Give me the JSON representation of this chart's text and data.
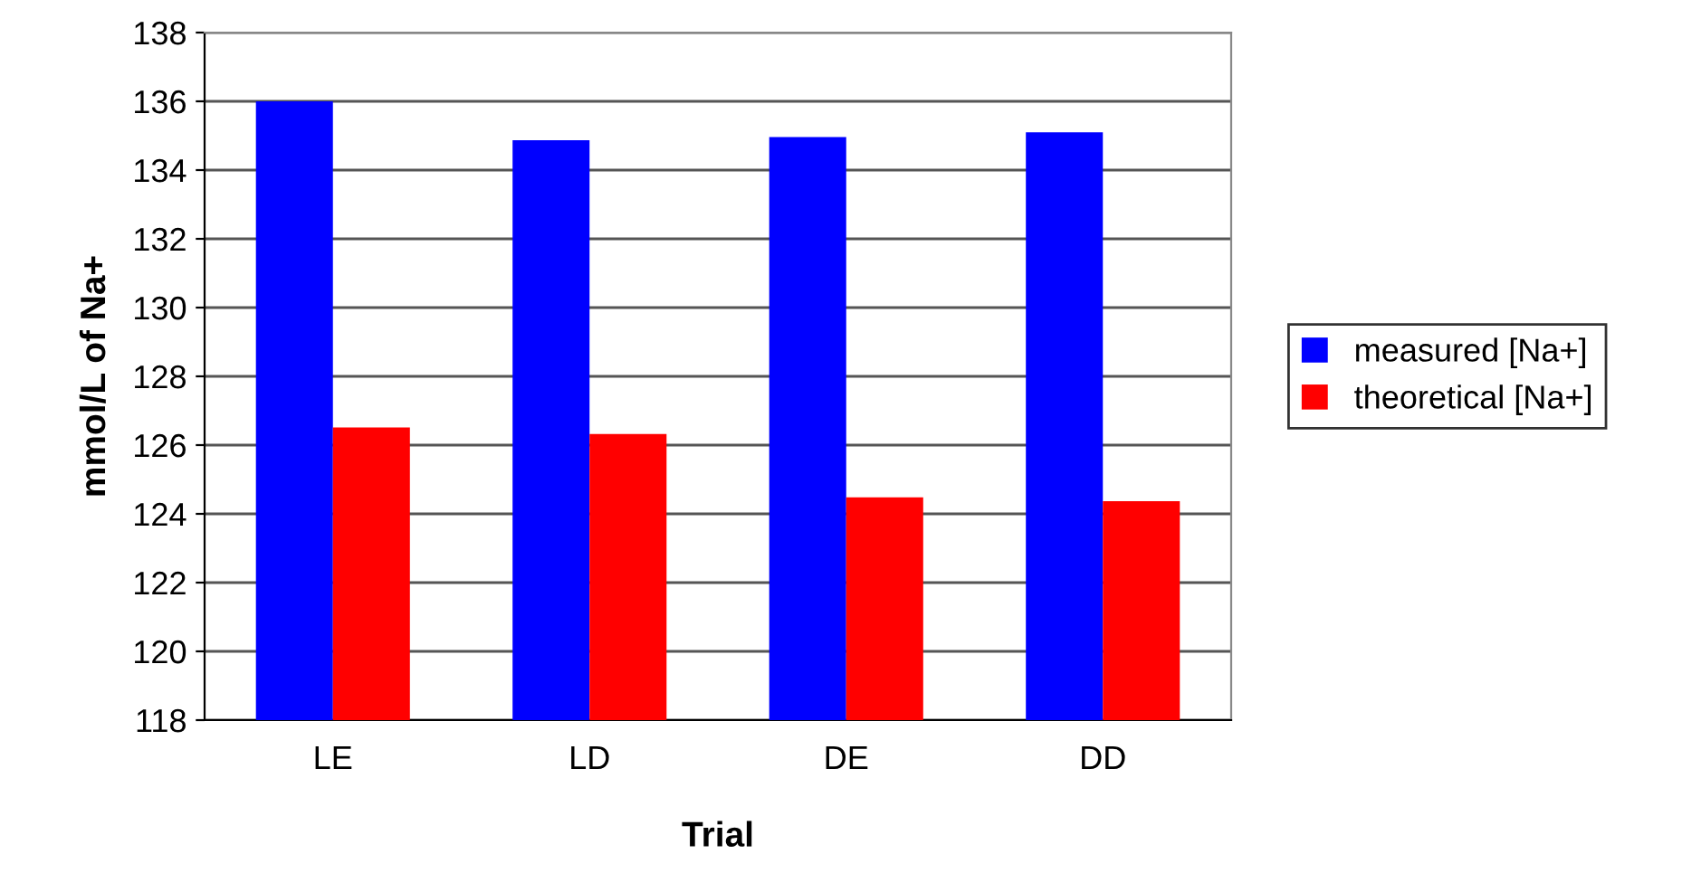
{
  "chart_data": {
    "type": "bar",
    "xlabel": "Trial",
    "ylabel": "mmol/L of Na+",
    "categories": [
      "LE",
      "LD",
      "DE",
      "DD"
    ],
    "series": [
      {
        "name": "measured [Na+]",
        "color": "#0000ff",
        "values": [
          136.0,
          134.87,
          134.96,
          135.1
        ]
      },
      {
        "name": "theoretical [Na+]",
        "color": "#ff0000",
        "values": [
          126.51,
          126.32,
          124.48,
          124.37
        ]
      }
    ],
    "ylim": [
      118,
      138
    ],
    "yticks": [
      118,
      120,
      122,
      124,
      126,
      128,
      130,
      132,
      134,
      136,
      138
    ],
    "grid": "y",
    "legend": "right"
  }
}
